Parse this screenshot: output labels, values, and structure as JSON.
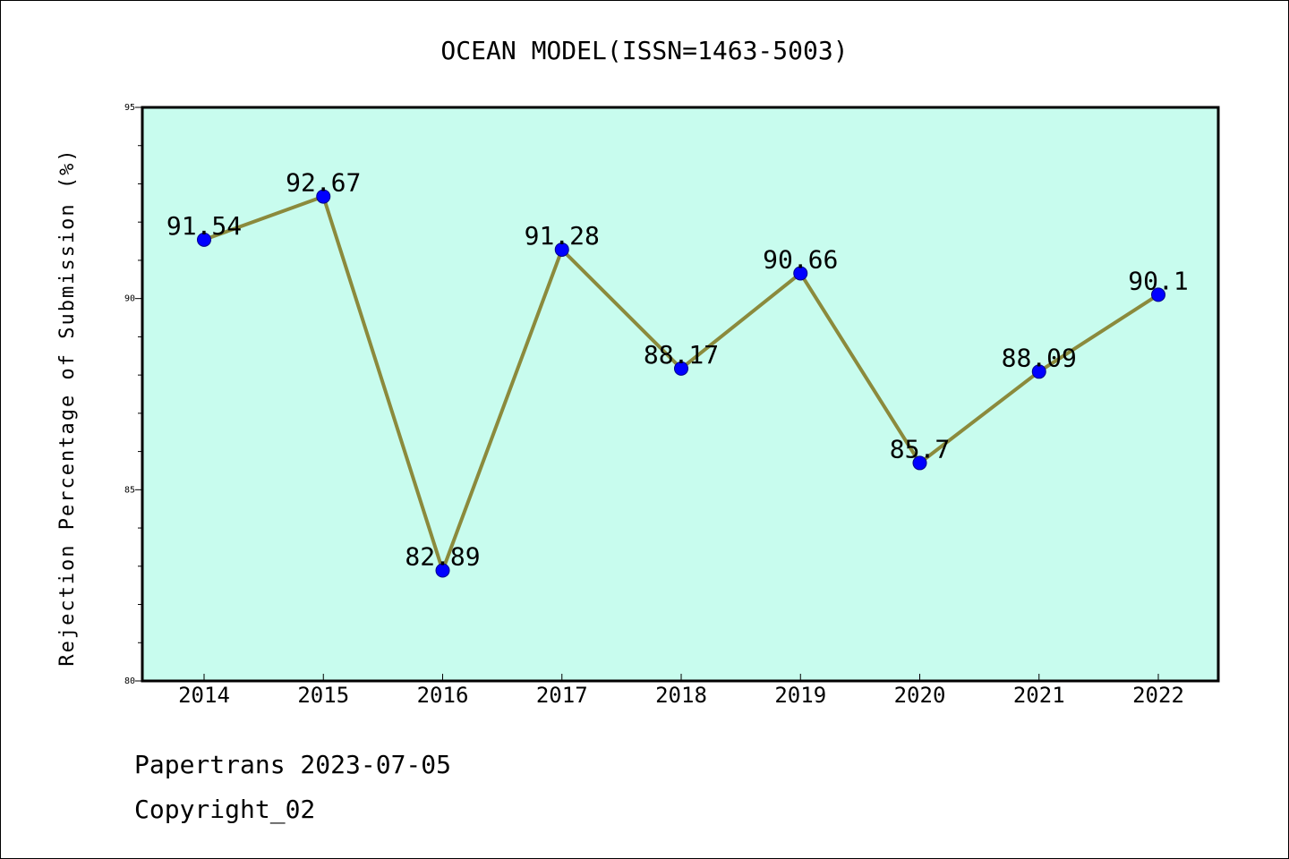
{
  "chart_data": {
    "type": "line",
    "title": "OCEAN MODEL(ISSN=1463-5003)",
    "xlabel": "",
    "ylabel": "Rejection Percentage of Submission (%)",
    "categories": [
      "2014",
      "2015",
      "2016",
      "2017",
      "2018",
      "2019",
      "2020",
      "2021",
      "2022"
    ],
    "values": [
      91.54,
      92.67,
      82.89,
      91.28,
      88.17,
      90.66,
      85.7,
      88.09,
      90.1
    ],
    "data_labels": [
      "91.54",
      "92.67",
      "82.89",
      "91.28",
      "88.17",
      "90.66",
      "85.7",
      "88.09",
      "90.1"
    ],
    "yticks": [
      "80",
      "85",
      "90",
      "95"
    ],
    "ylim": [
      80,
      95
    ],
    "grid": false,
    "colors": {
      "plot_background": "#c8fcee",
      "line": "#8b8a3c",
      "marker": "#0000ff"
    }
  },
  "footer": {
    "line1": "Papertrans 2023-07-05",
    "line2": "Copyright_02"
  }
}
